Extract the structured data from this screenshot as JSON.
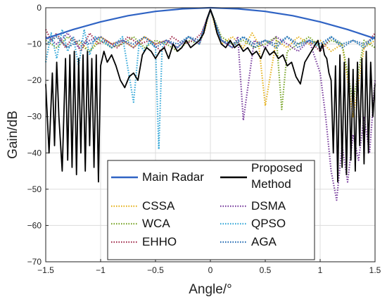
{
  "chart_data": {
    "type": "line",
    "xlabel": "Angle/°",
    "ylabel": "Gain/dB",
    "xlim": [
      -1.5,
      1.5
    ],
    "ylim": [
      -70,
      0
    ],
    "xticks": [
      -1.5,
      -1,
      -0.5,
      0,
      0.5,
      1,
      1.5
    ],
    "xtick_labels": [
      "−1.5",
      "−1",
      "−0.5",
      "0",
      "0.5",
      "1",
      "1.5"
    ],
    "yticks": [
      0,
      -10,
      -20,
      -30,
      -40,
      -50,
      -60,
      -70
    ],
    "ytick_labels": [
      "0",
      "−10",
      "−20",
      "−30",
      "−40",
      "−50",
      "−60",
      "−70"
    ],
    "grid": true,
    "legend_position": "bottom-center",
    "series": [
      {
        "name": "Main Radar",
        "color": "#2f63c4",
        "style": "solid",
        "x": [
          -1.5,
          -1.25,
          -1.0,
          -0.75,
          -0.5,
          -0.25,
          0,
          0.25,
          0.5,
          0.75,
          1.0,
          1.25,
          1.5
        ],
        "y": [
          -8.5,
          -6.0,
          -3.9,
          -2.2,
          -1.0,
          -0.3,
          0,
          -0.3,
          -1.0,
          -2.2,
          -3.9,
          -6.0,
          -8.5
        ]
      },
      {
        "name": "Proposed Method",
        "color": "#000000",
        "style": "solid",
        "x": [
          -1.5,
          -1.47,
          -1.44,
          -1.42,
          -1.4,
          -1.38,
          -1.35,
          -1.32,
          -1.3,
          -1.28,
          -1.26,
          -1.24,
          -1.22,
          -1.2,
          -1.18,
          -1.16,
          -1.14,
          -1.12,
          -1.1,
          -1.08,
          -1.06,
          -1.04,
          -1.02,
          -1.0,
          -0.97,
          -0.94,
          -0.9,
          -0.86,
          -0.82,
          -0.78,
          -0.74,
          -0.7,
          -0.66,
          -0.62,
          -0.58,
          -0.54,
          -0.5,
          -0.46,
          -0.42,
          -0.38,
          -0.34,
          -0.3,
          -0.26,
          -0.22,
          -0.18,
          -0.14,
          -0.1,
          -0.06,
          -0.03,
          0,
          0.03,
          0.06,
          0.1,
          0.14,
          0.18,
          0.22,
          0.26,
          0.3,
          0.34,
          0.38,
          0.42,
          0.46,
          0.5,
          0.54,
          0.58,
          0.62,
          0.66,
          0.7,
          0.74,
          0.78,
          0.82,
          0.86,
          0.9,
          0.94,
          0.98,
          1.0,
          1.02,
          1.04,
          1.06,
          1.08,
          1.1,
          1.12,
          1.14,
          1.16,
          1.18,
          1.2,
          1.22,
          1.24,
          1.26,
          1.28,
          1.3,
          1.32,
          1.34,
          1.36,
          1.38,
          1.4,
          1.42,
          1.44,
          1.46,
          1.48,
          1.5
        ],
        "y": [
          -21,
          -40,
          -18,
          -38,
          -15,
          -30,
          -45,
          -14,
          -42,
          -13,
          -44,
          -12,
          -46,
          -14,
          -40,
          -13,
          -45,
          -12,
          -38,
          -14,
          -44,
          -13,
          -48,
          -16,
          -12,
          -15,
          -13,
          -16,
          -20,
          -22,
          -19,
          -18,
          -20,
          -13,
          -11,
          -12,
          -14,
          -12,
          -11,
          -14,
          -10,
          -12,
          -11,
          -9,
          -11,
          -10,
          -9,
          -7,
          -3,
          -0.5,
          -3,
          -7,
          -10,
          -11,
          -9,
          -11,
          -10,
          -12,
          -11,
          -13,
          -12,
          -14,
          -11,
          -13,
          -12,
          -14,
          -13,
          -16,
          -15,
          -19,
          -21,
          -15,
          -13,
          -11,
          -9,
          -12,
          -10,
          -13,
          -14,
          -18,
          -20,
          -40,
          -16,
          -48,
          -13,
          -44,
          -15,
          -46,
          -14,
          -42,
          -17,
          -45,
          -15,
          -38,
          -14,
          -43,
          -12,
          -40,
          -15,
          -30,
          -21
        ]
      },
      {
        "name": "CSSA",
        "color": "#e6b320",
        "style": "dotted",
        "x": [
          -1.5,
          -1.4,
          -1.3,
          -1.2,
          -1.1,
          -1.0,
          -0.9,
          -0.8,
          -0.7,
          -0.6,
          -0.5,
          -0.4,
          -0.3,
          -0.2,
          -0.1,
          -0.05,
          0,
          0.05,
          0.1,
          0.2,
          0.3,
          0.38,
          0.44,
          0.5,
          0.6,
          0.7,
          0.8,
          0.9,
          1.0,
          1.1,
          1.2,
          1.3,
          1.4,
          1.5
        ],
        "y": [
          -10,
          -8,
          -11,
          -9,
          -12,
          -8,
          -10,
          -9,
          -11,
          -8,
          -10,
          -9,
          -11,
          -8,
          -10,
          -6,
          -0.5,
          -6,
          -10,
          -8,
          -11,
          -7,
          -10,
          -27,
          -9,
          -11,
          -8,
          -10,
          -9,
          -12,
          -10,
          -30,
          -11,
          -9
        ]
      },
      {
        "name": "WCA",
        "color": "#7aa62a",
        "style": "dotted",
        "x": [
          -1.5,
          -1.4,
          -1.3,
          -1.2,
          -1.1,
          -1.0,
          -0.9,
          -0.8,
          -0.7,
          -0.6,
          -0.5,
          -0.4,
          -0.3,
          -0.2,
          -0.1,
          0,
          0.1,
          0.2,
          0.3,
          0.4,
          0.5,
          0.6,
          0.65,
          0.7,
          0.8,
          0.9,
          1.0,
          1.1,
          1.2,
          1.3,
          1.4,
          1.5
        ],
        "y": [
          -9,
          -11,
          -8,
          -10,
          -12,
          -9,
          -11,
          -10,
          -8,
          -11,
          -9,
          -10,
          -12,
          -9,
          -10,
          -0.5,
          -8,
          -10,
          -9,
          -11,
          -10,
          -8,
          -28,
          -12,
          -10,
          -8,
          -11,
          -9,
          -10,
          -26,
          -9,
          -11
        ]
      },
      {
        "name": "EHHO",
        "color": "#a33050",
        "style": "dotted",
        "x": [
          -1.5,
          -1.45,
          -1.4,
          -1.32,
          -1.25,
          -1.18,
          -1.1,
          -1.02,
          -0.95,
          -0.85,
          -0.75,
          -0.65,
          -0.55,
          -0.45,
          -0.35,
          -0.25,
          -0.15,
          -0.08,
          0,
          0.1,
          0.2,
          0.3,
          0.4,
          0.5,
          0.6,
          0.7,
          0.8,
          0.9,
          1.0,
          1.1,
          1.2,
          1.3,
          1.4,
          1.5
        ],
        "y": [
          -6,
          -9,
          -7,
          -11,
          -8,
          -12,
          -7,
          -10,
          -9,
          -11,
          -8,
          -10,
          -9,
          -12,
          -8,
          -10,
          -9,
          -7,
          -0.5,
          -9,
          -11,
          -8,
          -10,
          -9,
          -11,
          -8,
          -10,
          -9,
          -12,
          -8,
          -10,
          -9,
          -11,
          -7
        ]
      },
      {
        "name": "DSMA",
        "color": "#7a3f9e",
        "style": "dotted",
        "x": [
          -1.5,
          -1.4,
          -1.3,
          -1.2,
          -1.1,
          -1.0,
          -0.9,
          -0.8,
          -0.7,
          -0.6,
          -0.5,
          -0.4,
          -0.3,
          -0.2,
          -0.1,
          0,
          0.1,
          0.2,
          0.25,
          0.3,
          0.4,
          0.5,
          0.6,
          0.7,
          0.8,
          0.9,
          1.0,
          1.05,
          1.1,
          1.15,
          1.2,
          1.25,
          1.3,
          1.35,
          1.4,
          1.45,
          1.5
        ],
        "y": [
          -8,
          -10,
          -7,
          -11,
          -9,
          -8,
          -10,
          -9,
          -11,
          -8,
          -10,
          -9,
          -11,
          -8,
          -10,
          -0.5,
          -9,
          -11,
          -8,
          -31,
          -9,
          -11,
          -8,
          -10,
          -12,
          -9,
          -18,
          -30,
          -45,
          -53,
          -38,
          -48,
          -35,
          -42,
          -30,
          -40,
          -20
        ]
      },
      {
        "name": "QPSO",
        "color": "#35a8d8",
        "style": "dotted",
        "x": [
          -1.5,
          -1.45,
          -1.4,
          -1.35,
          -1.3,
          -1.25,
          -1.2,
          -1.15,
          -1.1,
          -1.05,
          -1.0,
          -0.9,
          -0.8,
          -0.7,
          -0.65,
          -0.6,
          -0.55,
          -0.5,
          -0.47,
          -0.44,
          -0.4,
          -0.3,
          -0.2,
          -0.1,
          0,
          0.1,
          0.2,
          0.3,
          0.4,
          0.5,
          0.6,
          0.7,
          0.8,
          0.9,
          1.0,
          1.1,
          1.2,
          1.3,
          1.4,
          1.5
        ],
        "y": [
          -15,
          -7,
          -14,
          -6,
          -12,
          -8,
          -16,
          -6,
          -13,
          -8,
          -9,
          -11,
          -8,
          -26,
          -10,
          -12,
          -9,
          -11,
          -39,
          -11,
          -9,
          -11,
          -8,
          -10,
          -0.5,
          -9,
          -11,
          -8,
          -10,
          -9,
          -11,
          -8,
          -10,
          -9,
          -11,
          -8,
          -10,
          -9,
          -11,
          -8
        ]
      },
      {
        "name": "AGA",
        "color": "#2a6fb5",
        "style": "dotted",
        "x": [
          -1.5,
          -1.4,
          -1.3,
          -1.2,
          -1.1,
          -1.0,
          -0.9,
          -0.8,
          -0.7,
          -0.6,
          -0.5,
          -0.4,
          -0.3,
          -0.2,
          -0.1,
          0,
          0.1,
          0.2,
          0.3,
          0.4,
          0.5,
          0.6,
          0.7,
          0.8,
          0.9,
          1.0,
          1.1,
          1.2,
          1.3,
          1.4,
          1.5
        ],
        "y": [
          -10,
          -8,
          -11,
          -9,
          -10,
          -8,
          -11,
          -9,
          -10,
          -8,
          -11,
          -9,
          -10,
          -8,
          -9,
          -0.5,
          -9,
          -10,
          -8,
          -11,
          -9,
          -10,
          -8,
          -11,
          -9,
          -10,
          -8,
          -11,
          -9,
          -10,
          -8
        ]
      }
    ],
    "legend": {
      "rows": [
        [
          {
            "series": "Main Radar"
          },
          {
            "series": "Proposed Method",
            "lines": [
              "Proposed",
              "Method"
            ]
          }
        ],
        [
          {
            "series": "CSSA"
          },
          {
            "series": "DSMA"
          }
        ],
        [
          {
            "series": "WCA"
          },
          {
            "series": "QPSO"
          }
        ],
        [
          {
            "series": "EHHO"
          },
          {
            "series": "AGA"
          }
        ]
      ]
    }
  }
}
